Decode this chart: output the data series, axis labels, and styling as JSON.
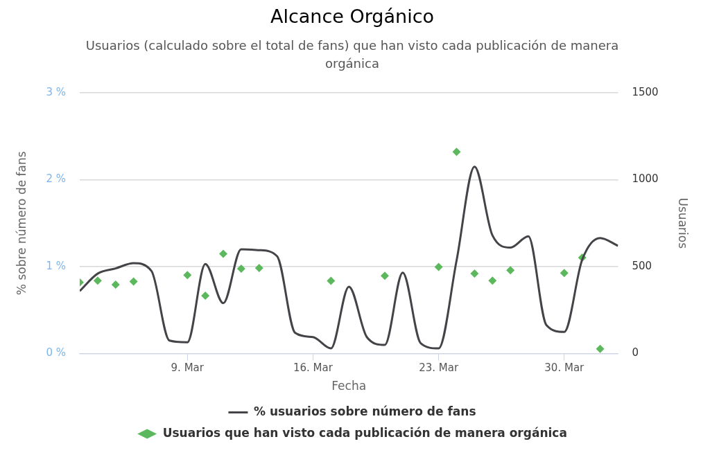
{
  "chart_data": {
    "type": "line",
    "title": "Alcance Orgánico",
    "subtitle": "Usuarios (calculado sobre el total de fans) que han visto cada publicación de manera orgánica",
    "xlabel": "Fecha",
    "ylabel": "% sobre número de fans",
    "y2label": "Usuarios",
    "x": [
      "--03-03",
      "--03-04",
      "--03-05",
      "--03-06",
      "--03-07",
      "--03-08",
      "--03-09",
      "--03-10",
      "--03-11",
      "--03-12",
      "--03-13",
      "--03-14",
      "--03-15",
      "--03-16",
      "--03-17",
      "--03-18",
      "--03-19",
      "--03-20",
      "--03-21",
      "--03-22",
      "--03-23",
      "--03-24",
      "--03-25",
      "--03-26",
      "--03-27",
      "--03-28",
      "--03-29",
      "--03-30",
      "--03-31",
      "--04-01",
      "--04-02"
    ],
    "series": [
      {
        "name": "% usuarios sobre número de fans",
        "type": "line",
        "color": "#434348",
        "marker": "none",
        "axis": "y",
        "values": [
          0.72,
          0.92,
          0.98,
          1.04,
          0.95,
          0.15,
          0.13,
          1.03,
          0.58,
          1.2,
          1.19,
          1.12,
          0.24,
          0.19,
          0.06,
          0.77,
          0.19,
          0.1,
          0.93,
          0.12,
          0.06,
          1.07,
          2.15,
          1.36,
          1.22,
          1.35,
          0.33,
          0.25,
          1.08,
          1.33,
          1.24
        ]
      },
      {
        "name": "Usuarios que han visto cada publicación de manera orgánica",
        "type": "scatter",
        "color": "#5cb85c",
        "marker": "diamond",
        "axis": "y2",
        "x": [
          "--03-03",
          "--03-04",
          "--03-05",
          "--03-06",
          "--03-09",
          "--03-10",
          "--03-11",
          "--03-12",
          "--03-13",
          "--03-17",
          "--03-20",
          "--03-23",
          "--03-24",
          "--03-25",
          "--03-26",
          "--03-27",
          "--03-30",
          "--03-31",
          "--04-01"
        ],
        "values": [
          410,
          420,
          397,
          415,
          451,
          333,
          574,
          488,
          492,
          419,
          447,
          498,
          1160,
          460,
          420,
          479,
          463,
          552,
          27
        ]
      }
    ],
    "xlim": [
      "--03-03",
      "--04-02"
    ],
    "xticks": [
      {
        "value": "--03-09",
        "label": "9. Mar"
      },
      {
        "value": "--03-16",
        "label": "16. Mar"
      },
      {
        "value": "--03-23",
        "label": "23. Mar"
      },
      {
        "value": "--03-30",
        "label": "30. Mar"
      }
    ],
    "ylim": [
      0,
      3
    ],
    "yticks": [
      {
        "value": 0,
        "label": "0 %"
      },
      {
        "value": 1,
        "label": "1 %"
      },
      {
        "value": 2,
        "label": "2 %"
      },
      {
        "value": 3,
        "label": "3 %"
      }
    ],
    "y2lim": [
      0,
      1500
    ],
    "y2ticks": [
      0,
      500,
      1000,
      1500
    ],
    "grid": "y",
    "legend": "bottom"
  }
}
